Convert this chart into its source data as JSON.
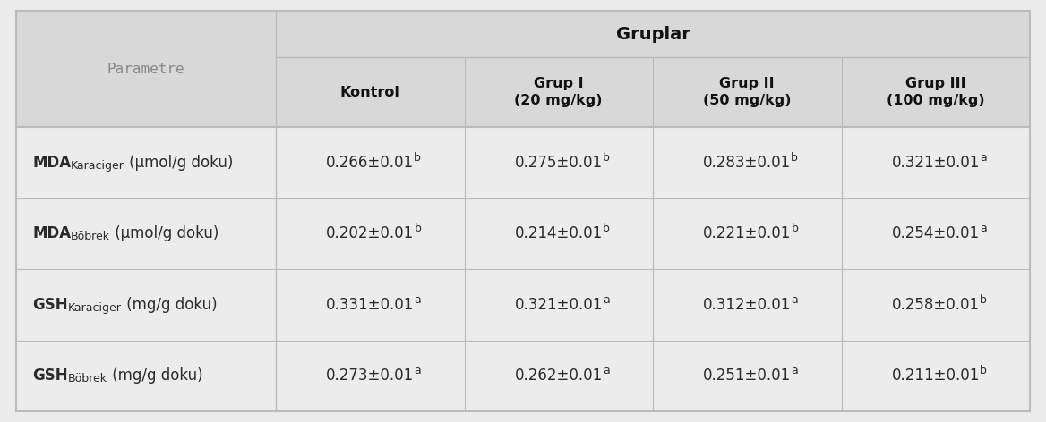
{
  "gruplar_header": "Gruplar",
  "col_headers": [
    "Kontrol",
    "Grup I\n(20 mg/kg)",
    "Grup II\n(50 mg/kg)",
    "Grup III\n(100 mg/kg)"
  ],
  "rows": [
    {
      "param_main": "MDA",
      "param_sub": "Karaciger",
      "param_rest": " (μmol/g doku)",
      "values": [
        "0.266±0.01",
        "0.275±0.01",
        "0.283±0.01",
        "0.321±0.01"
      ],
      "superscripts": [
        "b",
        "b",
        "b",
        "a"
      ]
    },
    {
      "param_main": "MDA",
      "param_sub": "Böbrek",
      "param_rest": " (μmol/g doku)",
      "values": [
        "0.202±0.01",
        "0.214±0.01",
        "0.221±0.01",
        "0.254±0.01"
      ],
      "superscripts": [
        "b",
        "b",
        "b",
        "a"
      ]
    },
    {
      "param_main": "GSH",
      "param_sub": "Karaciger",
      "param_rest": " (mg/g doku)",
      "values": [
        "0.331±0.01",
        "0.321±0.01",
        "0.312±0.01",
        "0.258±0.01"
      ],
      "superscripts": [
        "a",
        "a",
        "a",
        "b"
      ]
    },
    {
      "param_main": "GSH",
      "param_sub": "Böbrek",
      "param_rest": " (mg/g doku)",
      "values": [
        "0.273±0.01",
        "0.262±0.01",
        "0.251±0.01",
        "0.211±0.01"
      ],
      "superscripts": [
        "a",
        "a",
        "a",
        "b"
      ]
    }
  ],
  "bg_color": "#ececec",
  "header_bg": "#d8d8d8",
  "data_bg": "#ececec",
  "border_color": "#bbbbbb",
  "text_color": "#2a2a2a",
  "parametre_color": "#888888",
  "header_text_color": "#111111"
}
